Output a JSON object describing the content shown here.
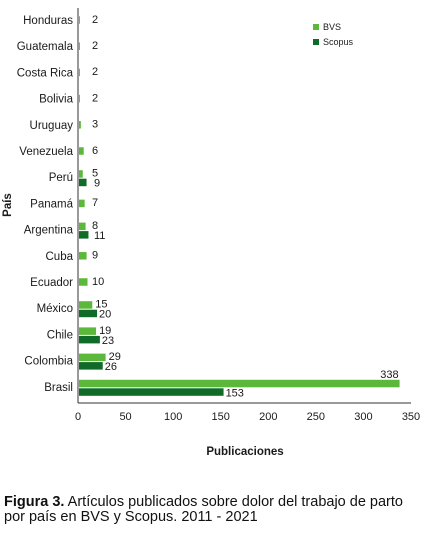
{
  "chart_data": {
    "type": "bar",
    "orientation": "horizontal",
    "categories": [
      "Honduras",
      "Guatemala",
      "Costa Rica",
      "Bolivia",
      "Uruguay",
      "Venezuela",
      "Perú",
      "Panamá",
      "Argentina",
      "Cuba",
      "Ecuador",
      "México",
      "Chile",
      "Colombia",
      "Brasil"
    ],
    "series": [
      {
        "name": "BVS",
        "color": "#5cb83a",
        "values": [
          2,
          2,
          2,
          2,
          3,
          6,
          5,
          7,
          8,
          9,
          10,
          15,
          19,
          29,
          338
        ]
      },
      {
        "name": "Scopus",
        "color": "#0f6b27",
        "values": [
          null,
          null,
          null,
          null,
          null,
          null,
          9,
          null,
          11,
          null,
          null,
          20,
          23,
          26,
          153
        ]
      }
    ],
    "xlabel": "Publicaciones",
    "ylabel": "País",
    "xlim": [
      0,
      350
    ],
    "xticks": [
      0,
      50,
      100,
      150,
      200,
      250,
      300,
      350
    ],
    "legend_position": "top-right",
    "grid": false
  },
  "caption": {
    "label": "Figura 3.",
    "text": " Artículos publicados sobre dolor del trabajo de parto por país en BVS y Scopus. 2011 - 2021"
  }
}
